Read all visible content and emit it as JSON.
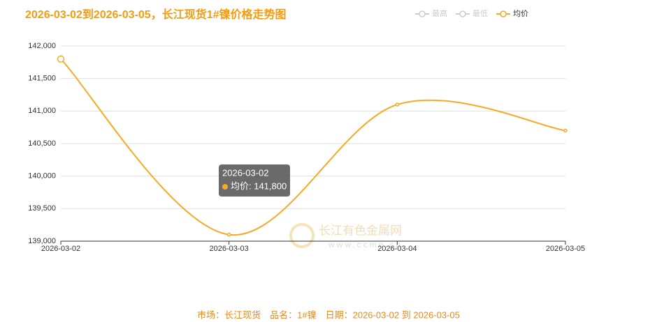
{
  "chart_data": {
    "type": "line",
    "title": "2026-03-02到2026-03-05，长江现货1#镍价格走势图",
    "categories": [
      "2026-03-02",
      "2026-03-03",
      "2026-03-04",
      "2026-03-05"
    ],
    "series": [
      {
        "name": "均价",
        "color": "#f7a928",
        "values": [
          141800,
          139100,
          141100,
          140700
        ]
      }
    ],
    "legend_inactive": [
      "最高",
      "最低"
    ],
    "ylim": [
      139000,
      142000
    ],
    "yticks": [
      {
        "value": 139000,
        "label": "139,000"
      },
      {
        "value": 139500,
        "label": "139,500"
      },
      {
        "value": 140000,
        "label": "140,000"
      },
      {
        "value": 140500,
        "label": "140,500"
      },
      {
        "value": 141000,
        "label": "141,000"
      },
      {
        "value": 141500,
        "label": "141,500"
      },
      {
        "value": 142000,
        "label": "142,000"
      }
    ],
    "grid": true,
    "smooth": true,
    "tooltip": {
      "title": "2026-03-02",
      "line": "均价: 141,800"
    },
    "watermark": "长江有色金属网",
    "watermark_url": "www.ccmn.cn",
    "footer": "市场：长江现货　品名：1#镍　日期：2026-03-02 到 2026-03-05"
  }
}
